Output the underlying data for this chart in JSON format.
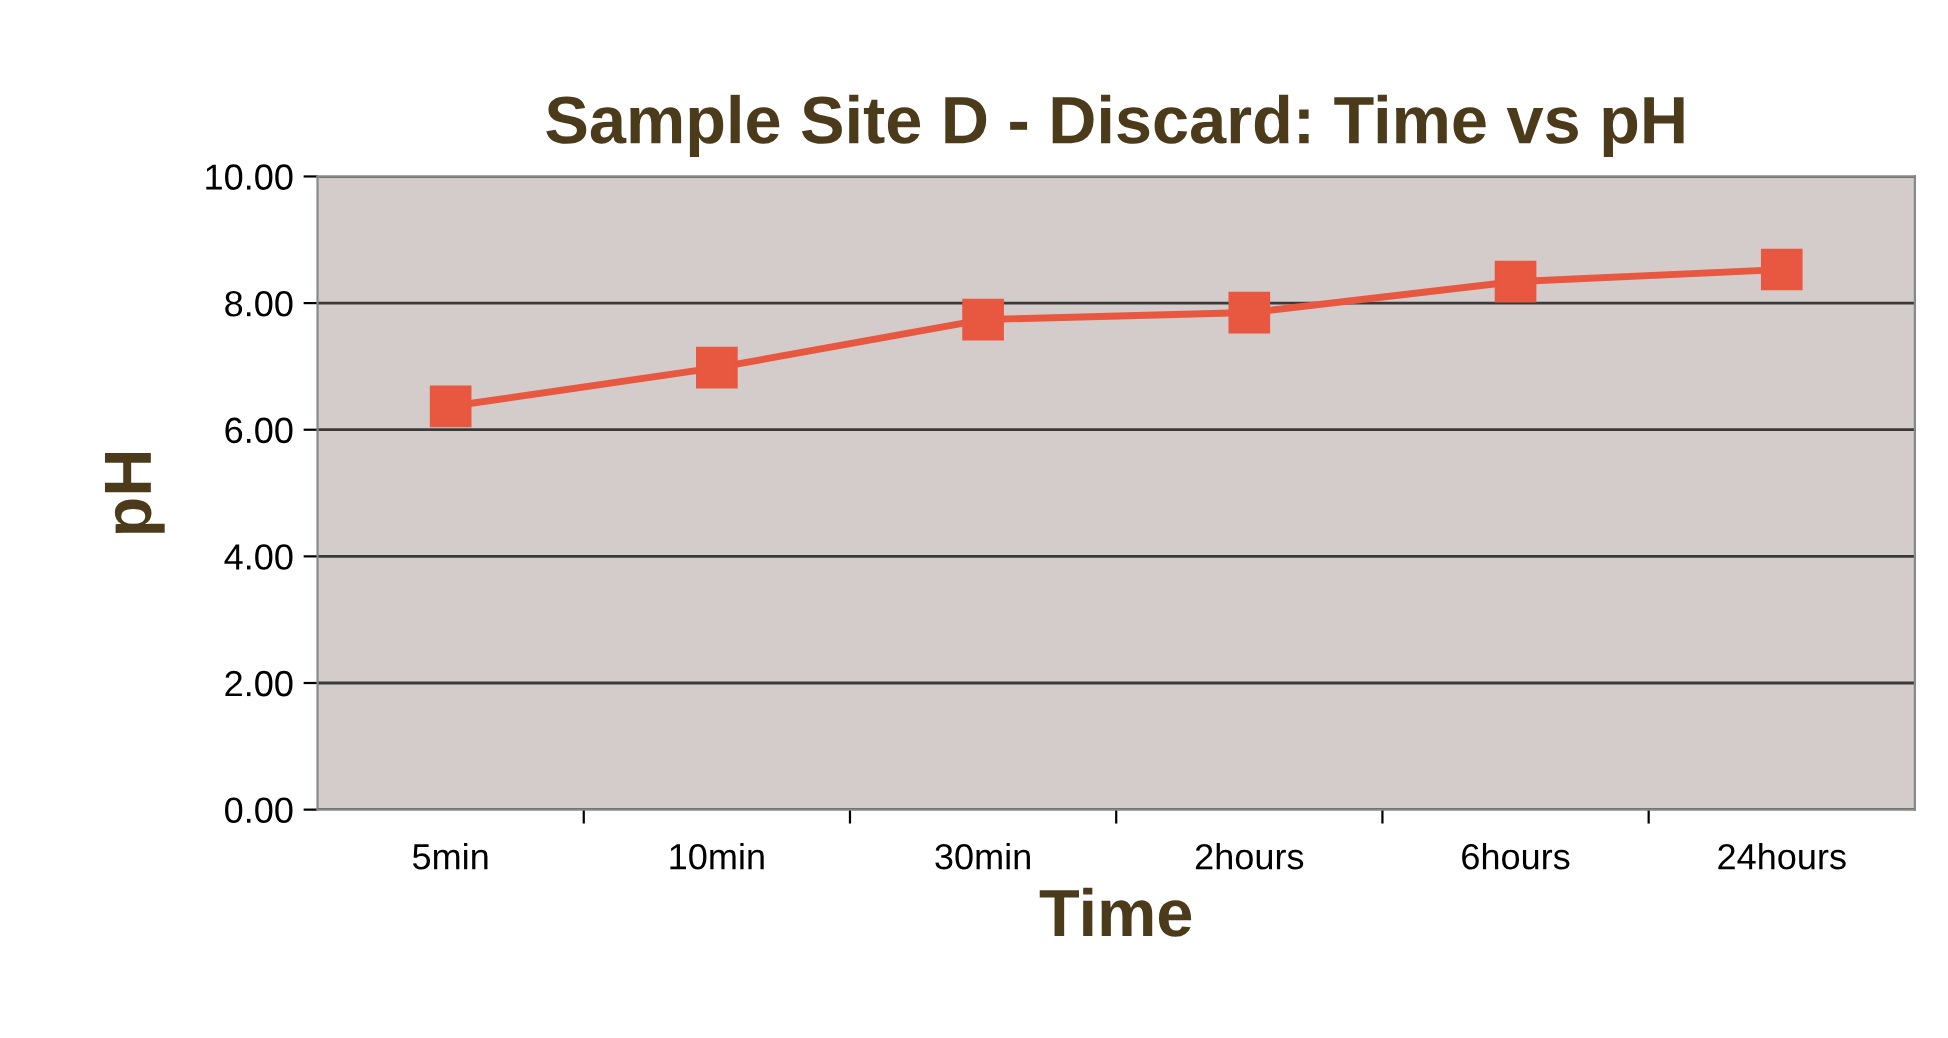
{
  "chart_data": {
    "type": "line",
    "title": "Sample Site D - Discard: Time vs pH",
    "xlabel": "Time",
    "ylabel": "pH",
    "categories": [
      "5min",
      "10min",
      "30min",
      "2hours",
      "6hours",
      "24hours"
    ],
    "series": [
      {
        "color": "#e8573f",
        "values": [
          6.37,
          6.98,
          7.74,
          7.85,
          8.34,
          8.53
        ]
      }
    ],
    "ylim": [
      0,
      10
    ],
    "yticks": [
      {
        "value": 0,
        "label": "0.00"
      },
      {
        "value": 2,
        "label": "2.00"
      },
      {
        "value": 4,
        "label": "4.00"
      },
      {
        "value": 6,
        "label": "6.00"
      },
      {
        "value": 8,
        "label": "8.00"
      },
      {
        "value": 10,
        "label": "10.00"
      }
    ],
    "grid": "y",
    "marker": "square",
    "line_style": "solid"
  }
}
